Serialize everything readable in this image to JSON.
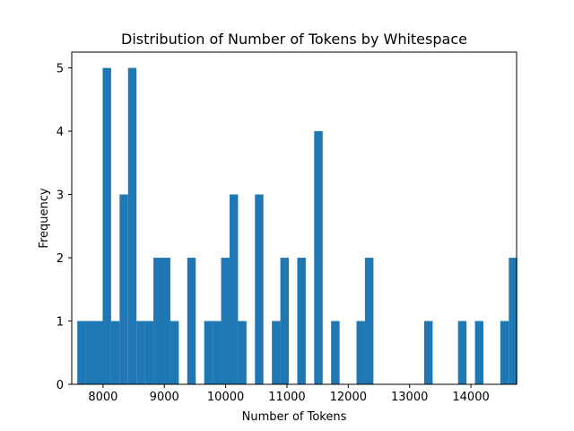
{
  "chart_data": {
    "type": "bar",
    "title": "Distribution of Number of Tokens by Whitespace",
    "xlabel": "Number of Tokens",
    "ylabel": "Frequency",
    "xlim": [
      7490,
      14745
    ],
    "ylim": [
      0,
      5.25
    ],
    "x_ticks": [
      8000,
      9000,
      10000,
      11000,
      12000,
      13000,
      14000
    ],
    "x_tick_labels": [
      "8000",
      "9000",
      "10000",
      "11000",
      "12000",
      "13000",
      "14000"
    ],
    "y_ticks": [
      0,
      1,
      2,
      3,
      4,
      5
    ],
    "y_tick_labels": [
      "0",
      "1",
      "2",
      "3",
      "4",
      "5"
    ],
    "bin_start": 7580,
    "bin_width": 138,
    "values": [
      1,
      1,
      1,
      5,
      1,
      3,
      5,
      1,
      1,
      2,
      2,
      1,
      0,
      2,
      0,
      1,
      1,
      2,
      3,
      1,
      0,
      3,
      0,
      1,
      2,
      0,
      2,
      0,
      4,
      0,
      1,
      0,
      0,
      1,
      2,
      0,
      0,
      0,
      0,
      0,
      0,
      1,
      0,
      0,
      0,
      1,
      0,
      1,
      0,
      0,
      1,
      2
    ],
    "bar_color": "#1f77b4",
    "grid": false,
    "legend": "none"
  }
}
